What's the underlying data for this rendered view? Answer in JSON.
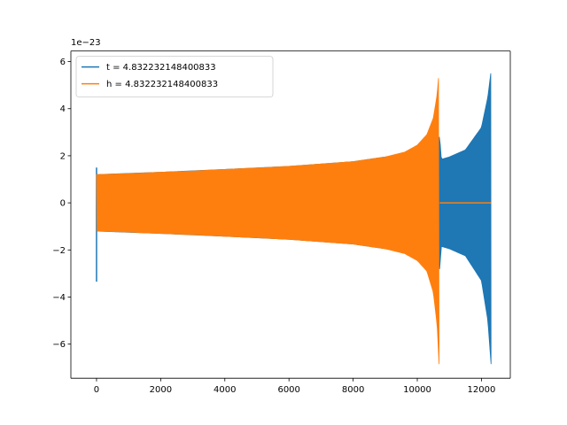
{
  "chart_data": {
    "type": "line",
    "title": "",
    "xlabel": "",
    "ylabel": "",
    "y_offset_label": "1e−23",
    "xlim": [
      -800,
      12900
    ],
    "ylim": [
      -7.45,
      6.45
    ],
    "xticks": [
      0,
      2000,
      4000,
      6000,
      8000,
      10000,
      12000
    ],
    "xtick_labels": [
      "0",
      "2000",
      "4000",
      "6000",
      "8000",
      "10000",
      "12000"
    ],
    "yticks": [
      -6,
      -4,
      -2,
      0,
      2,
      4,
      6
    ],
    "ytick_labels": [
      "−6",
      "−4",
      "−2",
      "0",
      "2",
      "4",
      "6"
    ],
    "grid": false,
    "legend_position": "upper-left",
    "series": [
      {
        "name": "t = 4.832232148400833",
        "color": "#1f77b4",
        "spike": {
          "x": 0,
          "min": -3.35,
          "max": 1.5
        },
        "envelope_x": [
          0,
          2000,
          4000,
          6000,
          8000,
          9500,
          10300,
          10700,
          10750,
          11000,
          11500,
          12000,
          12200,
          12300
        ],
        "envelope_y": [
          1.2,
          1.3,
          1.42,
          1.55,
          1.75,
          2.05,
          2.4,
          2.8,
          1.85,
          1.95,
          2.25,
          3.2,
          4.5,
          5.6
        ],
        "envelope_ymin": [
          -1.2,
          -1.3,
          -1.42,
          -1.55,
          -1.75,
          -2.05,
          -2.4,
          -2.8,
          -1.85,
          -1.95,
          -2.25,
          -3.3,
          -5.0,
          -6.85
        ],
        "flat_after_x": 12300,
        "flat_value": 0
      },
      {
        "name": "h = 4.832232148400833",
        "color": "#ff7f0e",
        "envelope_x": [
          0,
          1000,
          2000,
          3000,
          4000,
          5000,
          6000,
          7000,
          8000,
          9000,
          9600,
          10000,
          10300,
          10500,
          10620,
          10680
        ],
        "envelope_y": [
          1.2,
          1.24,
          1.3,
          1.35,
          1.42,
          1.48,
          1.55,
          1.65,
          1.75,
          1.95,
          2.15,
          2.45,
          2.9,
          3.6,
          4.6,
          5.6
        ],
        "envelope_ymin": [
          -1.2,
          -1.24,
          -1.3,
          -1.35,
          -1.42,
          -1.48,
          -1.55,
          -1.65,
          -1.75,
          -1.95,
          -2.15,
          -2.45,
          -2.9,
          -3.8,
          -5.2,
          -6.85
        ],
        "flat_range": [
          10700,
          12300
        ],
        "flat_value": 0
      }
    ]
  }
}
